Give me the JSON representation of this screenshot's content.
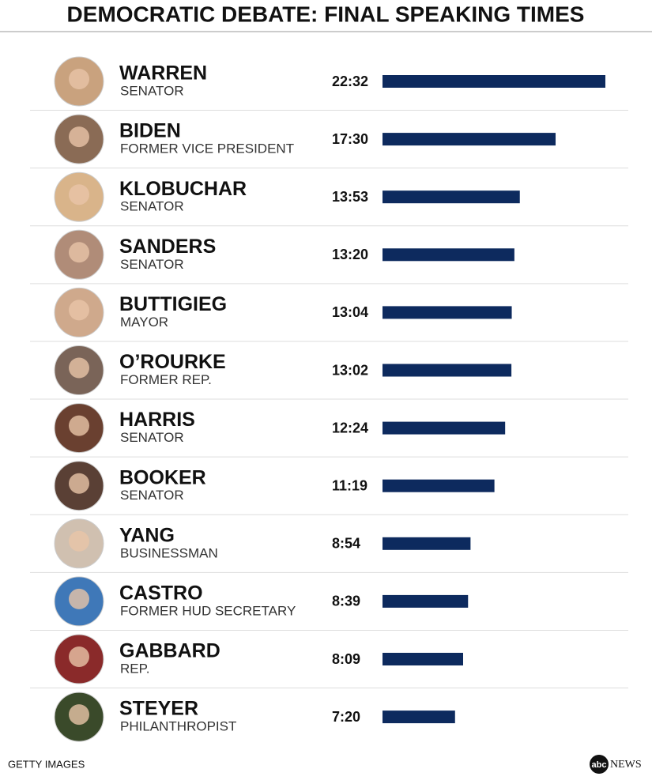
{
  "chart_data": {
    "type": "bar",
    "title": "DEMOCRATIC DEBATE: FINAL SPEAKING TIMES",
    "categories": [
      "WARREN",
      "BIDEN",
      "KLOBUCHAR",
      "SANDERS",
      "BUTTIGIEG",
      "O’ROURKE",
      "HARRIS",
      "BOOKER",
      "YANG",
      "CASTRO",
      "GABBARD",
      "STEYER"
    ],
    "roles": [
      "SENATOR",
      "FORMER VICE PRESIDENT",
      "SENATOR",
      "SENATOR",
      "MAYOR",
      "FORMER REP.",
      "SENATOR",
      "SENATOR",
      "BUSINESSMAN",
      "FORMER HUD SECRETARY",
      "REP.",
      "PHILANTHROPIST"
    ],
    "values": [
      1352,
      1050,
      833,
      800,
      784,
      782,
      744,
      679,
      534,
      519,
      489,
      440
    ],
    "value_labels": [
      "22:32",
      "17:30",
      "13:53",
      "13:20",
      "13:04",
      "13:02",
      "12:24",
      "11:19",
      "8:54",
      "8:39",
      "8:09",
      "7:20"
    ],
    "color": "#0d2a5e",
    "source": "GETTY IMAGES",
    "logo": {
      "mark": "abc",
      "text": "NEWS"
    }
  }
}
